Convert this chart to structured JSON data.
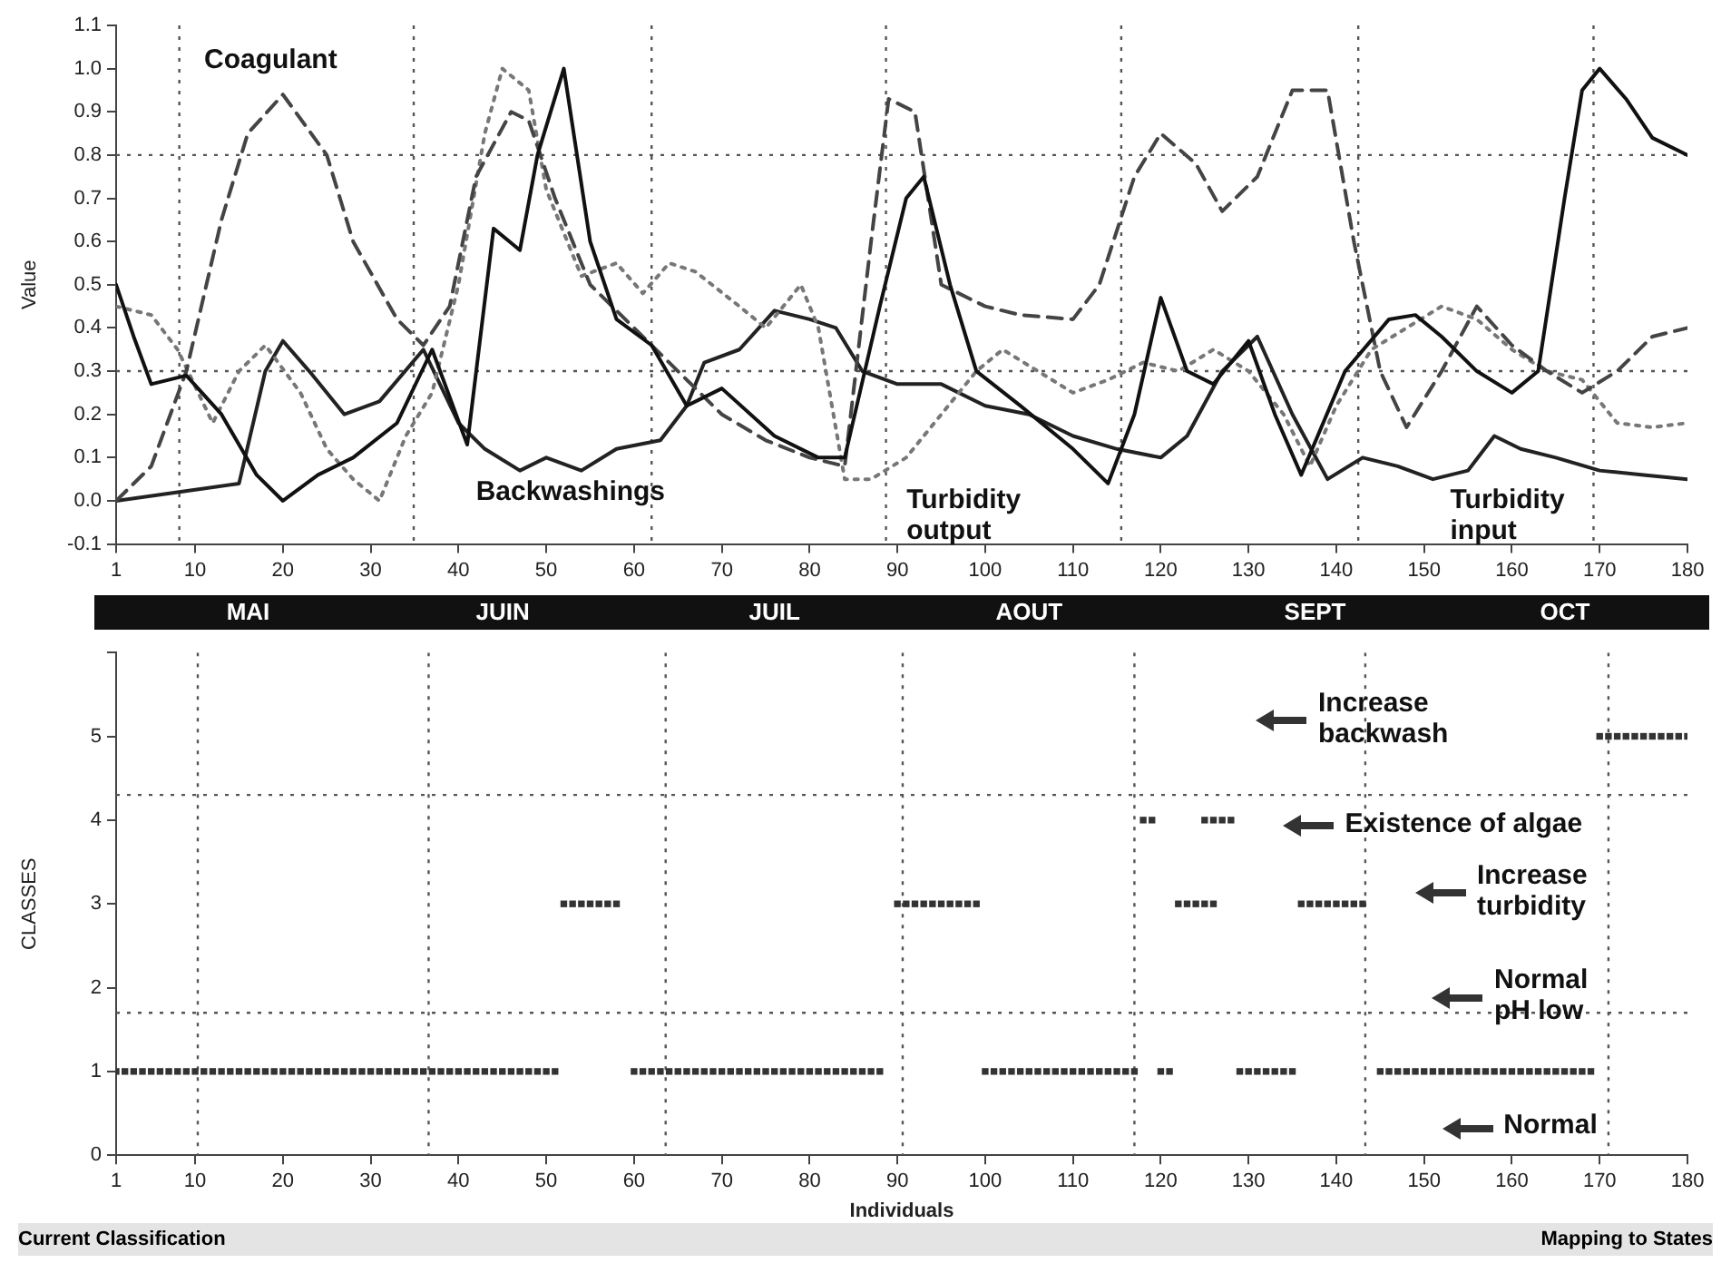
{
  "chart_data": [
    {
      "type": "line",
      "ylabel": "Value",
      "xlim": [
        1,
        180
      ],
      "xticks": [
        1,
        10,
        20,
        30,
        40,
        50,
        60,
        70,
        80,
        90,
        100,
        110,
        120,
        130,
        140,
        150,
        160,
        170,
        180
      ],
      "ylim": [
        -0.1,
        1.1
      ],
      "yticks": [
        -0.1,
        {
          "value": 0,
          "label": "0.0"
        },
        0.1,
        0.2,
        0.3,
        0.4,
        0.5,
        0.6,
        0.7,
        0.8,
        0.9,
        {
          "value": 1,
          "label": "1.0"
        },
        1.1
      ],
      "grid": false,
      "legend": false,
      "marker": "none",
      "series": [
        {
          "color": "#111111",
          "line_style": "solid",
          "x": [
            1,
            3,
            5,
            9,
            13,
            17,
            20,
            24,
            28,
            33,
            37,
            41,
            44,
            47,
            49,
            52,
            55,
            58,
            62,
            66,
            70,
            76,
            81,
            84,
            88,
            91,
            93,
            96,
            99,
            104,
            110,
            114,
            117,
            120,
            123,
            126,
            130,
            133,
            136,
            141,
            146,
            149,
            152,
            156,
            160,
            163,
            166,
            168,
            170,
            173,
            176,
            180
          ],
          "values": [
            0.5,
            0.38,
            0.27,
            0.29,
            0.2,
            0.06,
            0,
            0.06,
            0.1,
            0.18,
            0.35,
            0.13,
            0.63,
            0.58,
            0.8,
            1,
            0.6,
            0.42,
            0.36,
            0.22,
            0.26,
            0.15,
            0.1,
            0.1,
            0.45,
            0.7,
            0.75,
            0.5,
            0.3,
            0.22,
            0.12,
            0.04,
            0.2,
            0.47,
            0.3,
            0.27,
            0.37,
            0.2,
            0.06,
            0.3,
            0.42,
            0.43,
            0.38,
            0.3,
            0.25,
            0.3,
            0.7,
            0.95,
            1,
            0.93,
            0.84,
            0.8
          ]
        },
        {
          "color": "#444444",
          "line_style": "dashed",
          "x": [
            1,
            5,
            9,
            13,
            16,
            20,
            25,
            28,
            33,
            36,
            39,
            42,
            46,
            48,
            51,
            55,
            60,
            65,
            70,
            75,
            80,
            84,
            87,
            89,
            92,
            95,
            100,
            104,
            110,
            113,
            117,
            120,
            124,
            127,
            131,
            135,
            139,
            142,
            145,
            148,
            152,
            156,
            160,
            164,
            168,
            172,
            176,
            180
          ],
          "values": [
            0,
            0.08,
            0.3,
            0.65,
            0.85,
            0.94,
            0.8,
            0.6,
            0.42,
            0.36,
            0.45,
            0.75,
            0.9,
            0.88,
            0.7,
            0.5,
            0.4,
            0.3,
            0.2,
            0.14,
            0.1,
            0.08,
            0.6,
            0.93,
            0.9,
            0.5,
            0.45,
            0.43,
            0.42,
            0.5,
            0.75,
            0.85,
            0.78,
            0.67,
            0.75,
            0.95,
            0.95,
            0.6,
            0.3,
            0.17,
            0.3,
            0.45,
            0.36,
            0.3,
            0.25,
            0.3,
            0.38,
            0.4
          ]
        },
        {
          "color": "#777777",
          "line_style": "dotted",
          "x": [
            1,
            5,
            8,
            12,
            15,
            18,
            22,
            25,
            28,
            31,
            34,
            37,
            40,
            43,
            45,
            48,
            50,
            54,
            58,
            61,
            64,
            67,
            72,
            75,
            79,
            81,
            84,
            87,
            91,
            95,
            99,
            102,
            106,
            110,
            114,
            118,
            122,
            126,
            130,
            134,
            137,
            140,
            144,
            148,
            152,
            156,
            160,
            164,
            168,
            172,
            176,
            180
          ],
          "values": [
            0.45,
            0.43,
            0.35,
            0.18,
            0.3,
            0.36,
            0.25,
            0.12,
            0.05,
            0,
            0.15,
            0.25,
            0.5,
            0.85,
            1,
            0.95,
            0.72,
            0.52,
            0.55,
            0.48,
            0.55,
            0.53,
            0.45,
            0.4,
            0.5,
            0.4,
            0.05,
            0.05,
            0.1,
            0.2,
            0.3,
            0.35,
            0.3,
            0.25,
            0.28,
            0.32,
            0.3,
            0.35,
            0.3,
            0.2,
            0.08,
            0.22,
            0.35,
            0.4,
            0.45,
            0.42,
            0.35,
            0.3,
            0.28,
            0.18,
            0.17,
            0.18
          ]
        },
        {
          "color": "#222222",
          "line_style": "solid",
          "x": [
            1,
            8,
            15,
            18,
            20,
            23,
            27,
            31,
            36,
            40,
            43,
            47,
            50,
            54,
            58,
            63,
            66,
            68,
            72,
            76,
            80,
            83,
            86,
            90,
            95,
            100,
            105,
            110,
            115,
            120,
            123,
            127,
            131,
            135,
            139,
            143,
            147,
            151,
            155,
            158,
            161,
            165,
            170,
            175,
            180
          ],
          "values": [
            0,
            0.02,
            0.04,
            0.3,
            0.37,
            0.3,
            0.2,
            0.23,
            0.35,
            0.18,
            0.12,
            0.07,
            0.1,
            0.07,
            0.12,
            0.14,
            0.22,
            0.32,
            0.35,
            0.44,
            0.42,
            0.4,
            0.3,
            0.27,
            0.27,
            0.22,
            0.2,
            0.15,
            0.12,
            0.1,
            0.15,
            0.3,
            0.38,
            0.2,
            0.05,
            0.1,
            0.08,
            0.05,
            0.07,
            0.15,
            0.12,
            0.1,
            0.07,
            0.06,
            0.05
          ]
        }
      ],
      "ref_lines": [
        {
          "axis": "y",
          "value": 0.8,
          "color": "#555555",
          "line_style": "dotted"
        },
        {
          "axis": "y",
          "value": 0.3,
          "color": "#555555",
          "line_style": "dotted"
        },
        {
          "axis": "x",
          "value": 8.2,
          "color": "#555555",
          "line_style": "dotted"
        },
        {
          "axis": "x",
          "value": 34.9,
          "color": "#555555",
          "line_style": "dotted"
        },
        {
          "axis": "x",
          "value": 62,
          "color": "#555555",
          "line_style": "dotted"
        },
        {
          "axis": "x",
          "value": 88.7,
          "color": "#555555",
          "line_style": "dotted"
        },
        {
          "axis": "x",
          "value": 115.5,
          "color": "#555555",
          "line_style": "dotted"
        },
        {
          "axis": "x",
          "value": 142.5,
          "color": "#555555",
          "line_style": "dotted"
        },
        {
          "axis": "x",
          "value": 169.3,
          "color": "#555555",
          "line_style": "dotted"
        }
      ],
      "annotations": [
        "Coagulant",
        "Backwashings",
        "Turbidity output",
        "Turbidity input",
        "MAI",
        "JUIN",
        "JUIL",
        "AOUT",
        "SEPT",
        "OCT"
      ]
    },
    {
      "type": "scatter",
      "xlabel": "Individuals",
      "ylabel": "CLASSES",
      "xlim": [
        1,
        180
      ],
      "xticks": [
        1,
        10,
        20,
        30,
        40,
        50,
        60,
        70,
        80,
        90,
        100,
        110,
        120,
        130,
        140,
        150,
        160,
        170,
        180
      ],
      "ylim": [
        0,
        6
      ],
      "yticks": [
        0,
        1,
        2,
        3,
        4,
        5,
        {
          "value": 6,
          "label": null
        }
      ],
      "grid": false,
      "legend": false,
      "marker": "square",
      "series": [
        {
          "color": "#333333",
          "x": [
            1,
            2,
            3,
            4,
            5,
            6,
            7,
            8,
            9,
            10,
            11,
            12,
            13,
            14,
            15,
            16,
            17,
            18,
            19,
            20,
            21,
            22,
            23,
            24,
            25,
            26,
            27,
            28,
            29,
            30,
            31,
            32,
            33,
            34,
            35,
            36,
            37,
            38,
            39,
            40,
            41,
            42,
            43,
            44,
            45,
            46,
            47,
            48,
            49,
            50,
            51,
            60,
            61,
            62,
            63,
            64,
            65,
            66,
            67,
            68,
            69,
            70,
            71,
            72,
            73,
            74,
            75,
            76,
            77,
            78,
            79,
            80,
            81,
            82,
            83,
            84,
            85,
            86,
            87,
            88,
            100,
            101,
            102,
            103,
            104,
            105,
            106,
            107,
            108,
            109,
            110,
            111,
            112,
            113,
            114,
            115,
            116,
            117,
            120,
            121,
            129,
            130,
            131,
            132,
            133,
            134,
            135,
            145,
            146,
            147,
            148,
            149,
            150,
            151,
            152,
            153,
            154,
            155,
            156,
            157,
            158,
            159,
            160,
            161,
            162,
            163,
            164,
            165,
            166,
            167,
            168,
            169
          ],
          "values": [
            1,
            1,
            1,
            1,
            1,
            1,
            1,
            1,
            1,
            1,
            1,
            1,
            1,
            1,
            1,
            1,
            1,
            1,
            1,
            1,
            1,
            1,
            1,
            1,
            1,
            1,
            1,
            1,
            1,
            1,
            1,
            1,
            1,
            1,
            1,
            1,
            1,
            1,
            1,
            1,
            1,
            1,
            1,
            1,
            1,
            1,
            1,
            1,
            1,
            1,
            1,
            1,
            1,
            1,
            1,
            1,
            1,
            1,
            1,
            1,
            1,
            1,
            1,
            1,
            1,
            1,
            1,
            1,
            1,
            1,
            1,
            1,
            1,
            1,
            1,
            1,
            1,
            1,
            1,
            1,
            1,
            1,
            1,
            1,
            1,
            1,
            1,
            1,
            1,
            1,
            1,
            1,
            1,
            1,
            1,
            1,
            1,
            1,
            1,
            1,
            1,
            1,
            1,
            1,
            1,
            1,
            1,
            1,
            1,
            1,
            1,
            1,
            1,
            1,
            1,
            1,
            1,
            1,
            1,
            1,
            1,
            1,
            1,
            1,
            1,
            1,
            1,
            1,
            1,
            1,
            1,
            1
          ]
        },
        {
          "color": "#333333",
          "x": [
            52,
            53,
            54,
            55,
            56,
            57,
            58,
            90,
            91,
            92,
            93,
            94,
            95,
            96,
            97,
            98,
            99,
            122,
            123,
            124,
            125,
            126,
            136,
            137,
            138,
            139,
            140,
            141,
            142,
            143
          ],
          "values": [
            3,
            3,
            3,
            3,
            3,
            3,
            3,
            3,
            3,
            3,
            3,
            3,
            3,
            3,
            3,
            3,
            3,
            3,
            3,
            3,
            3,
            3,
            3,
            3,
            3,
            3,
            3,
            3,
            3,
            3
          ]
        },
        {
          "color": "#333333",
          "x": [
            118,
            119,
            125,
            126,
            127,
            128
          ],
          "values": [
            4,
            4,
            4,
            4,
            4,
            4
          ]
        },
        {
          "color": "#333333",
          "x": [
            170,
            171,
            172,
            173,
            174,
            175,
            176,
            177,
            178,
            179,
            180
          ],
          "values": [
            5,
            5,
            5,
            5,
            5,
            5,
            5,
            5,
            5,
            5,
            5
          ]
        }
      ],
      "ref_lines": [
        {
          "axis": "y",
          "value": 4.3,
          "color": "#555555",
          "line_style": "dotted"
        },
        {
          "axis": "y",
          "value": 1.7,
          "color": "#555555",
          "line_style": "dotted"
        },
        {
          "axis": "x",
          "value": 10.3,
          "color": "#555555",
          "line_style": "dotted"
        },
        {
          "axis": "x",
          "value": 36.6,
          "color": "#555555",
          "line_style": "dotted"
        },
        {
          "axis": "x",
          "value": 63.6,
          "color": "#555555",
          "line_style": "dotted"
        },
        {
          "axis": "x",
          "value": 90.6,
          "color": "#555555",
          "line_style": "dotted"
        },
        {
          "axis": "x",
          "value": 117,
          "color": "#555555",
          "line_style": "dotted"
        },
        {
          "axis": "x",
          "value": 143.3,
          "color": "#555555",
          "line_style": "dotted"
        },
        {
          "axis": "x",
          "value": 171,
          "color": "#555555",
          "line_style": "dotted"
        }
      ],
      "annotations": [
        "Increase backwash",
        "Existence of algae",
        "Increase turbidity",
        "Normal pH low",
        "Normal",
        "Current Classification",
        "Mapping to States"
      ]
    }
  ]
}
